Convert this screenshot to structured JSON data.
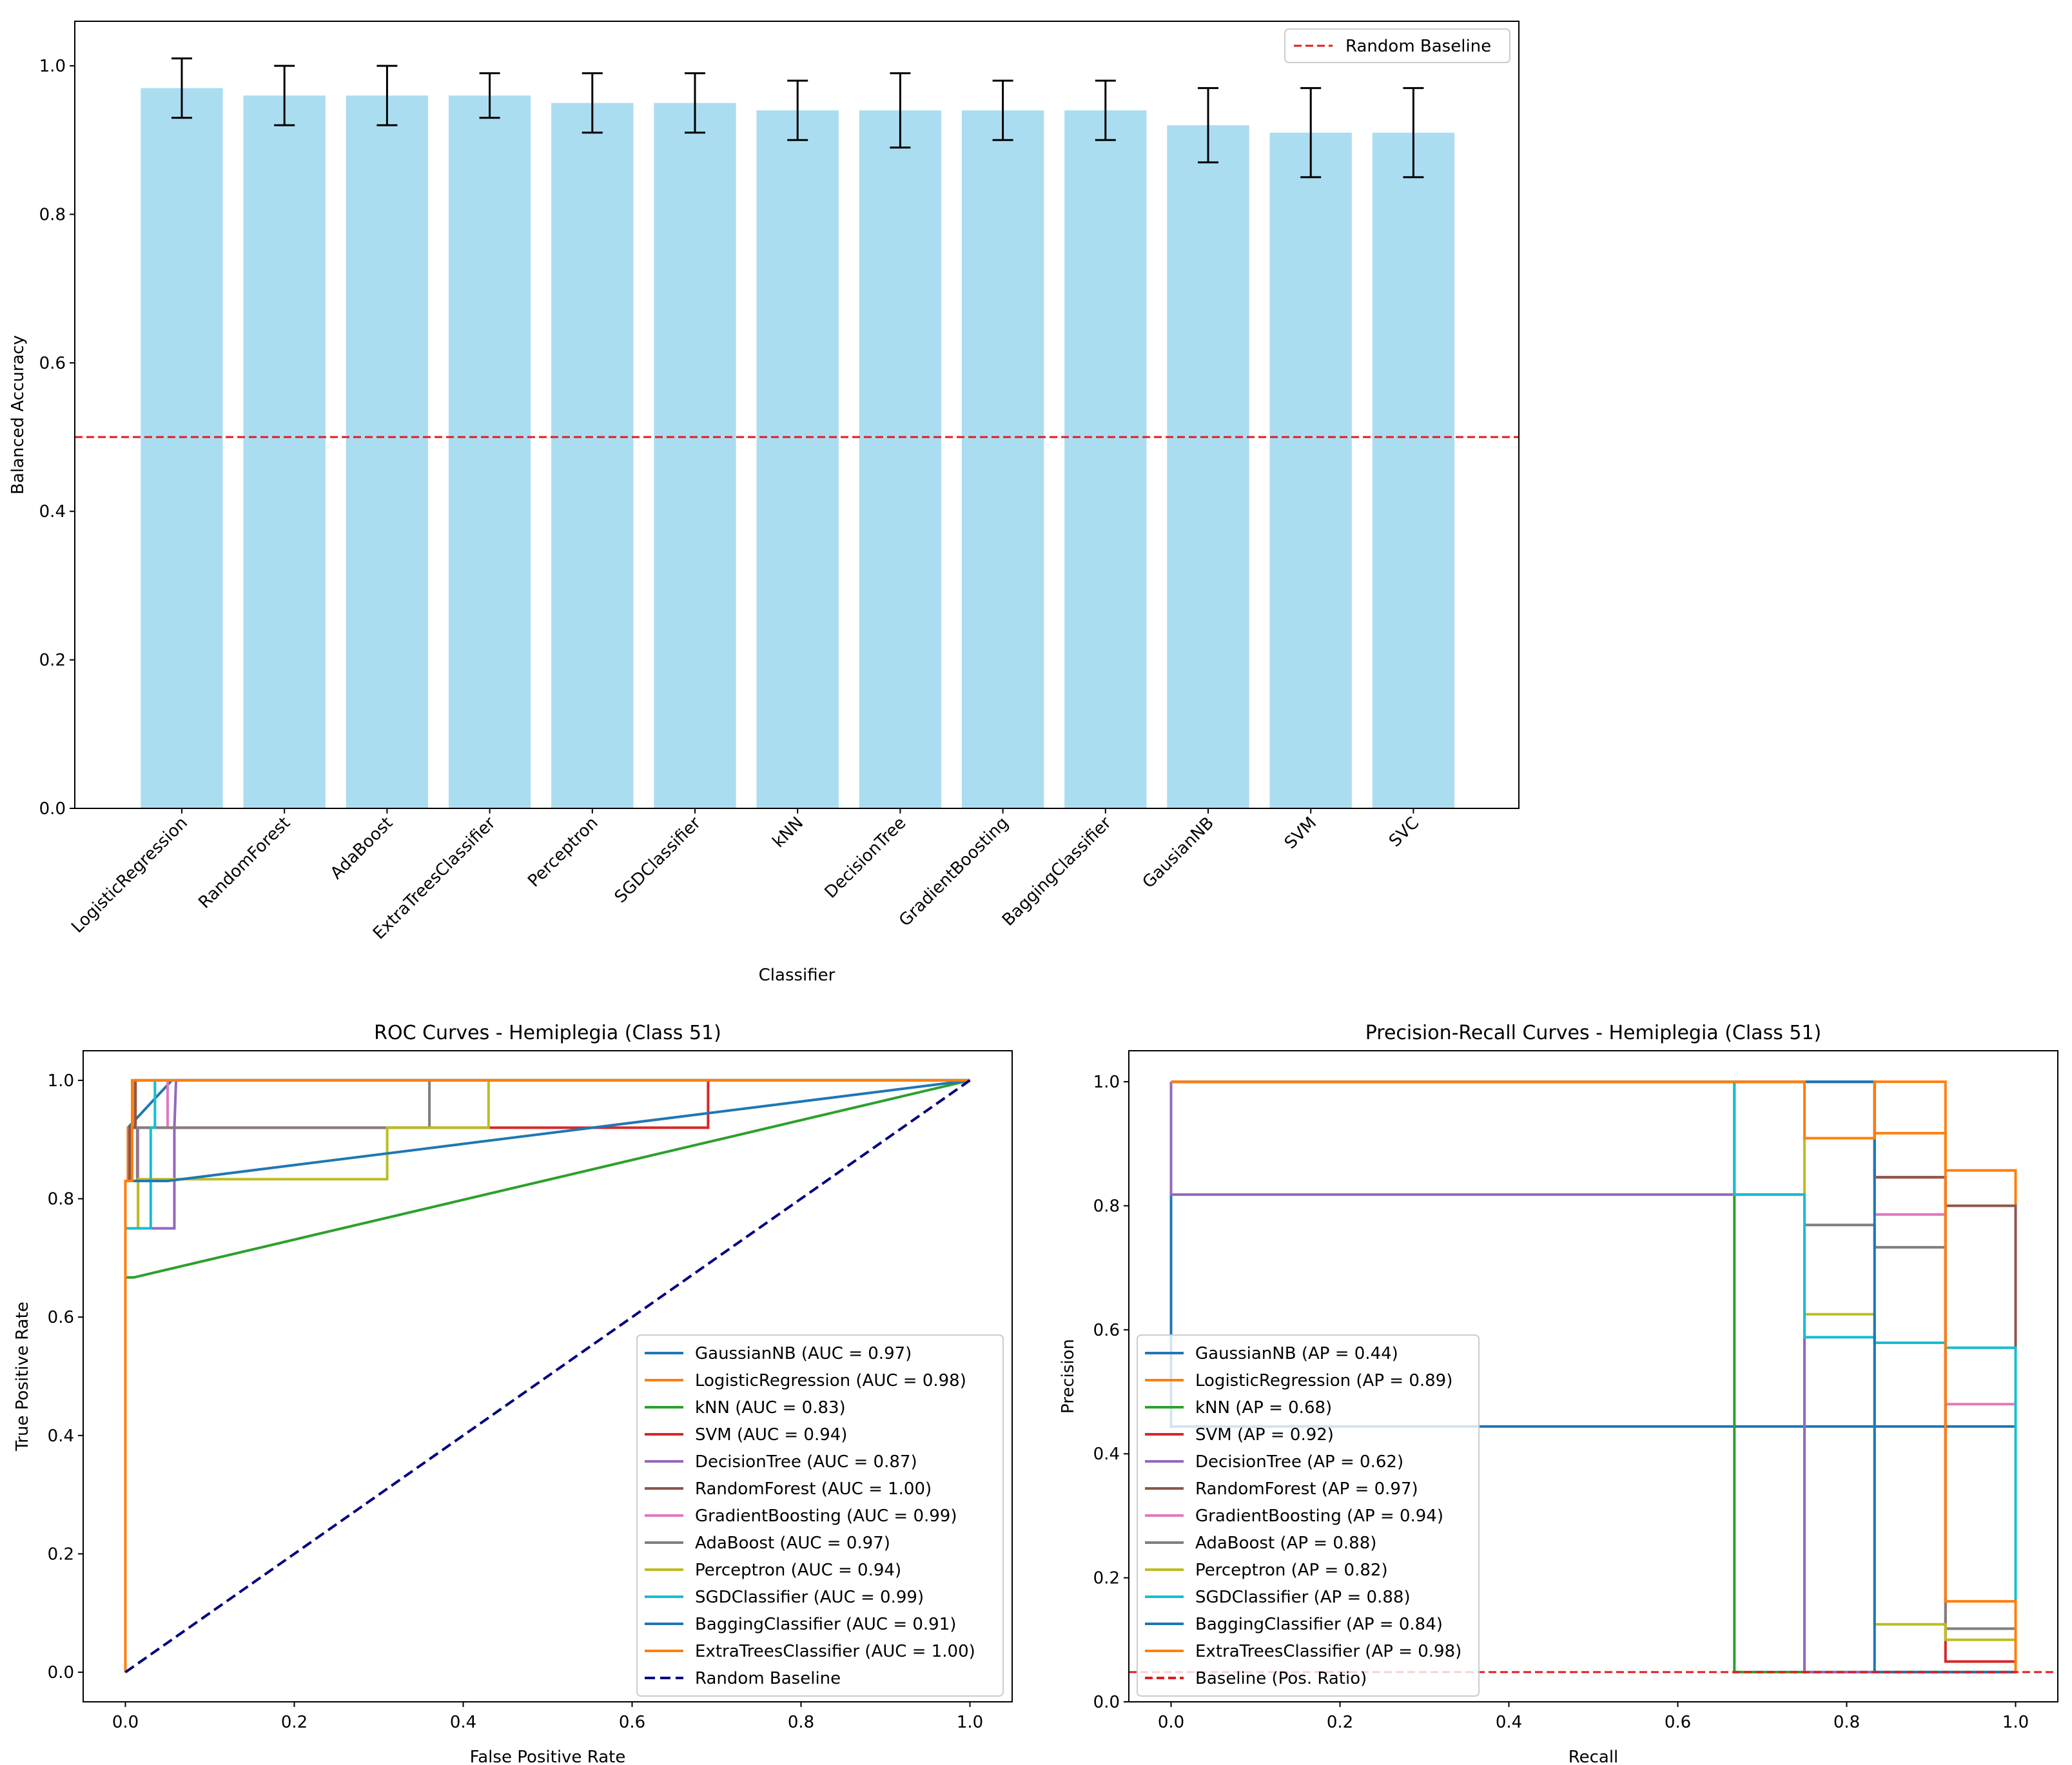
{
  "chart_data": [
    {
      "id": "accuracy",
      "type": "bar",
      "title": "",
      "xlabel": "Classifier",
      "ylabel": "Balanced Accuracy",
      "ylim": [
        0,
        1.06
      ],
      "yticks": [
        0.0,
        0.2,
        0.4,
        0.6,
        0.8,
        1.0
      ],
      "bar_color": "#87CEEB",
      "categories": [
        "LogisticRegression",
        "RandomForest",
        "AdaBoost",
        "ExtraTreesClassifier",
        "Perceptron",
        "SGDClassifier",
        "kNN",
        "DecisionTree",
        "GradientBoosting",
        "BaggingClassifier",
        "GausianNB",
        "SVM",
        "SVC"
      ],
      "values": [
        0.97,
        0.96,
        0.96,
        0.96,
        0.95,
        0.95,
        0.94,
        0.94,
        0.94,
        0.94,
        0.92,
        0.91,
        0.91
      ],
      "errors": [
        0.04,
        0.04,
        0.04,
        0.03,
        0.04,
        0.04,
        0.04,
        0.05,
        0.04,
        0.04,
        0.05,
        0.06,
        0.06
      ],
      "baseline": 0.5,
      "baseline_label": "Random Baseline",
      "baseline_color": "#e41a1c",
      "legend": "top-right"
    },
    {
      "id": "roc",
      "type": "line",
      "title": "ROC Curves - Hemiplegia (Class 51)",
      "xlabel": "False Positive Rate",
      "ylabel": "True Positive Rate",
      "xlim": [
        -0.05,
        1.05
      ],
      "ylim": [
        -0.05,
        1.05
      ],
      "ticks": [
        0.0,
        0.2,
        0.4,
        0.6,
        0.8,
        1.0
      ],
      "legend": "lower-right",
      "series": [
        {
          "name": "GaussianNB (AUC = 0.97)",
          "color": "#1f77b4",
          "x": [
            0,
            0,
            0.003,
            0.003,
            0.055,
            1
          ],
          "y": [
            0,
            0.83,
            0.83,
            0.92,
            1,
            1
          ]
        },
        {
          "name": "LogisticRegression (AUC = 0.98)",
          "color": "#ff7f0e",
          "x": [
            0,
            0,
            0.003,
            0.003,
            0.01,
            0.01,
            1
          ],
          "y": [
            0,
            0.83,
            0.83,
            0.92,
            0.92,
            1,
            1
          ]
        },
        {
          "name": "kNN (AUC = 0.83)",
          "color": "#2ca02c",
          "x": [
            0,
            0,
            0.01,
            1
          ],
          "y": [
            0,
            0.667,
            0.667,
            1
          ]
        },
        {
          "name": "SVM (AUC = 0.94)",
          "color": "#d62728",
          "x": [
            0,
            0,
            0.005,
            0.005,
            0.69,
            0.69,
            1
          ],
          "y": [
            0,
            0.83,
            0.83,
            0.92,
            0.92,
            1,
            1
          ]
        },
        {
          "name": "DecisionTree (AUC = 0.87)",
          "color": "#9467bd",
          "x": [
            0,
            0,
            0.058,
            0.058,
            0.06,
            1
          ],
          "y": [
            0,
            0.75,
            0.75,
            0.92,
            1,
            1
          ]
        },
        {
          "name": "RandomForest (AUC = 1.00)",
          "color": "#8c564b",
          "x": [
            0,
            0,
            0.005,
            0.005,
            0.012,
            0.012,
            1
          ],
          "y": [
            0,
            0.83,
            0.83,
            0.92,
            0.92,
            1,
            1
          ]
        },
        {
          "name": "GradientBoosting (AUC = 0.99)",
          "color": "#e377c2",
          "x": [
            0,
            0,
            0.015,
            0.015,
            0.05,
            0.05,
            1
          ],
          "y": [
            0,
            0.75,
            0.75,
            0.92,
            0.92,
            1,
            1
          ]
        },
        {
          "name": "AdaBoost (AUC = 0.97)",
          "color": "#7f7f7f",
          "x": [
            0,
            0,
            0.014,
            0.014,
            0.36,
            0.36,
            1
          ],
          "y": [
            0,
            0.83,
            0.83,
            0.92,
            0.92,
            1,
            1
          ]
        },
        {
          "name": "Perceptron (AUC = 0.94)",
          "color": "#bcbd22",
          "x": [
            0,
            0,
            0.015,
            0.015,
            0.31,
            0.31,
            0.43,
            0.43,
            1
          ],
          "y": [
            0,
            0.75,
            0.75,
            0.833,
            0.833,
            0.92,
            0.92,
            1,
            1
          ]
        },
        {
          "name": "SGDClassifier (AUC = 0.99)",
          "color": "#17becf",
          "x": [
            0,
            0,
            0.03,
            0.03,
            0.035,
            0.035,
            1
          ],
          "y": [
            0,
            0.75,
            0.75,
            0.92,
            0.92,
            1,
            1
          ]
        },
        {
          "name": "BaggingClassifier (AUC = 0.91)",
          "color": "#1f77b4",
          "x": [
            0,
            0,
            0.005,
            0.005,
            0.05,
            0.05,
            1
          ],
          "y": [
            0,
            0.83,
            0.83,
            0.83,
            0.83,
            0.83,
            1
          ]
        },
        {
          "name": "ExtraTreesClassifier (AUC = 1.00)",
          "color": "#ff7f0e",
          "x": [
            0,
            0,
            0.008,
            0.008,
            0.245,
            0.245,
            1
          ],
          "y": [
            0,
            0.83,
            0.83,
            1,
            1,
            1,
            1
          ]
        }
      ],
      "baseline": {
        "name": "Random Baseline",
        "color": "#000080",
        "x": [
          0,
          1
        ],
        "y": [
          0,
          1
        ]
      }
    },
    {
      "id": "pr",
      "type": "line",
      "title": "Precision-Recall Curves - Hemiplegia (Class 51)",
      "xlabel": "Recall",
      "ylabel": "Precision",
      "xlim": [
        -0.05,
        1.05
      ],
      "ylim": [
        0,
        1.05
      ],
      "ticks": [
        0.0,
        0.2,
        0.4,
        0.6,
        0.8,
        1.0
      ],
      "legend": "lower-left",
      "series": [
        {
          "name": "GaussianNB (AP = 0.44)",
          "color": "#1f77b4",
          "x": [
            0,
            0,
            1
          ],
          "y": [
            1,
            0.444,
            0.444
          ]
        },
        {
          "name": "LogisticRegression (AP = 0.89)",
          "color": "#ff7f0e",
          "x": [
            0,
            0.833,
            0.833,
            0.917,
            0.917,
            1,
            1
          ],
          "y": [
            1,
            1,
            0.917,
            0.917,
            0.857,
            0.857,
            0.048
          ]
        },
        {
          "name": "kNN (AP = 0.68)",
          "color": "#2ca02c",
          "x": [
            0,
            0.667,
            0.667,
            1
          ],
          "y": [
            1,
            1,
            0.048,
            0.048
          ]
        },
        {
          "name": "SVM (AP = 0.92)",
          "color": "#d62728",
          "x": [
            0,
            0.833,
            0.833,
            0.917,
            0.917,
            1,
            1
          ],
          "y": [
            1,
            1,
            0.846,
            0.846,
            0.065,
            0.065,
            0.048
          ]
        },
        {
          "name": "DecisionTree (AP = 0.62)",
          "color": "#9467bd",
          "x": [
            0,
            0,
            0.667,
            0.667,
            0.75,
            0.75,
            1
          ],
          "y": [
            1,
            0.818,
            0.818,
            0.818,
            0.818,
            0.048,
            0.048
          ]
        },
        {
          "name": "RandomForest (AP = 0.97)",
          "color": "#8c564b",
          "x": [
            0,
            0.833,
            0.833,
            0.917,
            0.917,
            1,
            1
          ],
          "y": [
            1,
            1,
            0.846,
            0.846,
            0.8,
            0.8,
            0.048
          ]
        },
        {
          "name": "GradientBoosting (AP = 0.94)",
          "color": "#e377c2",
          "x": [
            0,
            0.833,
            0.833,
            0.917,
            0.917,
            1,
            1
          ],
          "y": [
            1,
            1,
            0.786,
            0.786,
            0.48,
            0.48,
            0.048
          ]
        },
        {
          "name": "AdaBoost (AP = 0.88)",
          "color": "#7f7f7f",
          "x": [
            0,
            0.75,
            0.75,
            0.833,
            0.833,
            0.917,
            0.917,
            1,
            1
          ],
          "y": [
            1,
            1,
            0.769,
            0.769,
            0.733,
            0.733,
            0.118,
            0.118,
            0.048
          ]
        },
        {
          "name": "Perceptron (AP = 0.82)",
          "color": "#bcbd22",
          "x": [
            0,
            0.75,
            0.75,
            0.833,
            0.833,
            0.917,
            0.917,
            1,
            1
          ],
          "y": [
            1,
            1,
            0.625,
            0.625,
            0.125,
            0.125,
            0.1,
            0.1,
            0.048
          ]
        },
        {
          "name": "SGDClassifier (AP = 0.88)",
          "color": "#17becf",
          "x": [
            0,
            0.667,
            0.667,
            0.75,
            0.75,
            0.833,
            0.833,
            0.917,
            0.917,
            1,
            1
          ],
          "y": [
            1,
            1,
            0.818,
            0.818,
            0.588,
            0.588,
            0.579,
            0.579,
            0.571,
            0.571,
            0.048
          ]
        },
        {
          "name": "BaggingClassifier (AP = 0.84)",
          "color": "#1f77b4",
          "x": [
            0,
            0.833,
            0.833,
            1
          ],
          "y": [
            1,
            1,
            0.048,
            0.048
          ]
        },
        {
          "name": "ExtraTreesClassifier (AP = 0.98)",
          "color": "#ff7f0e",
          "x": [
            0,
            0.75,
            0.75,
            0.833,
            0.833,
            0.917,
            0.917,
            1,
            1
          ],
          "y": [
            1,
            1,
            0.909,
            0.909,
            1,
            1,
            0.162,
            0.162,
            0.048
          ]
        }
      ],
      "baseline": {
        "name": "Baseline (Pos. Ratio)",
        "color": "#e41a1c",
        "value": 0.048
      }
    }
  ]
}
